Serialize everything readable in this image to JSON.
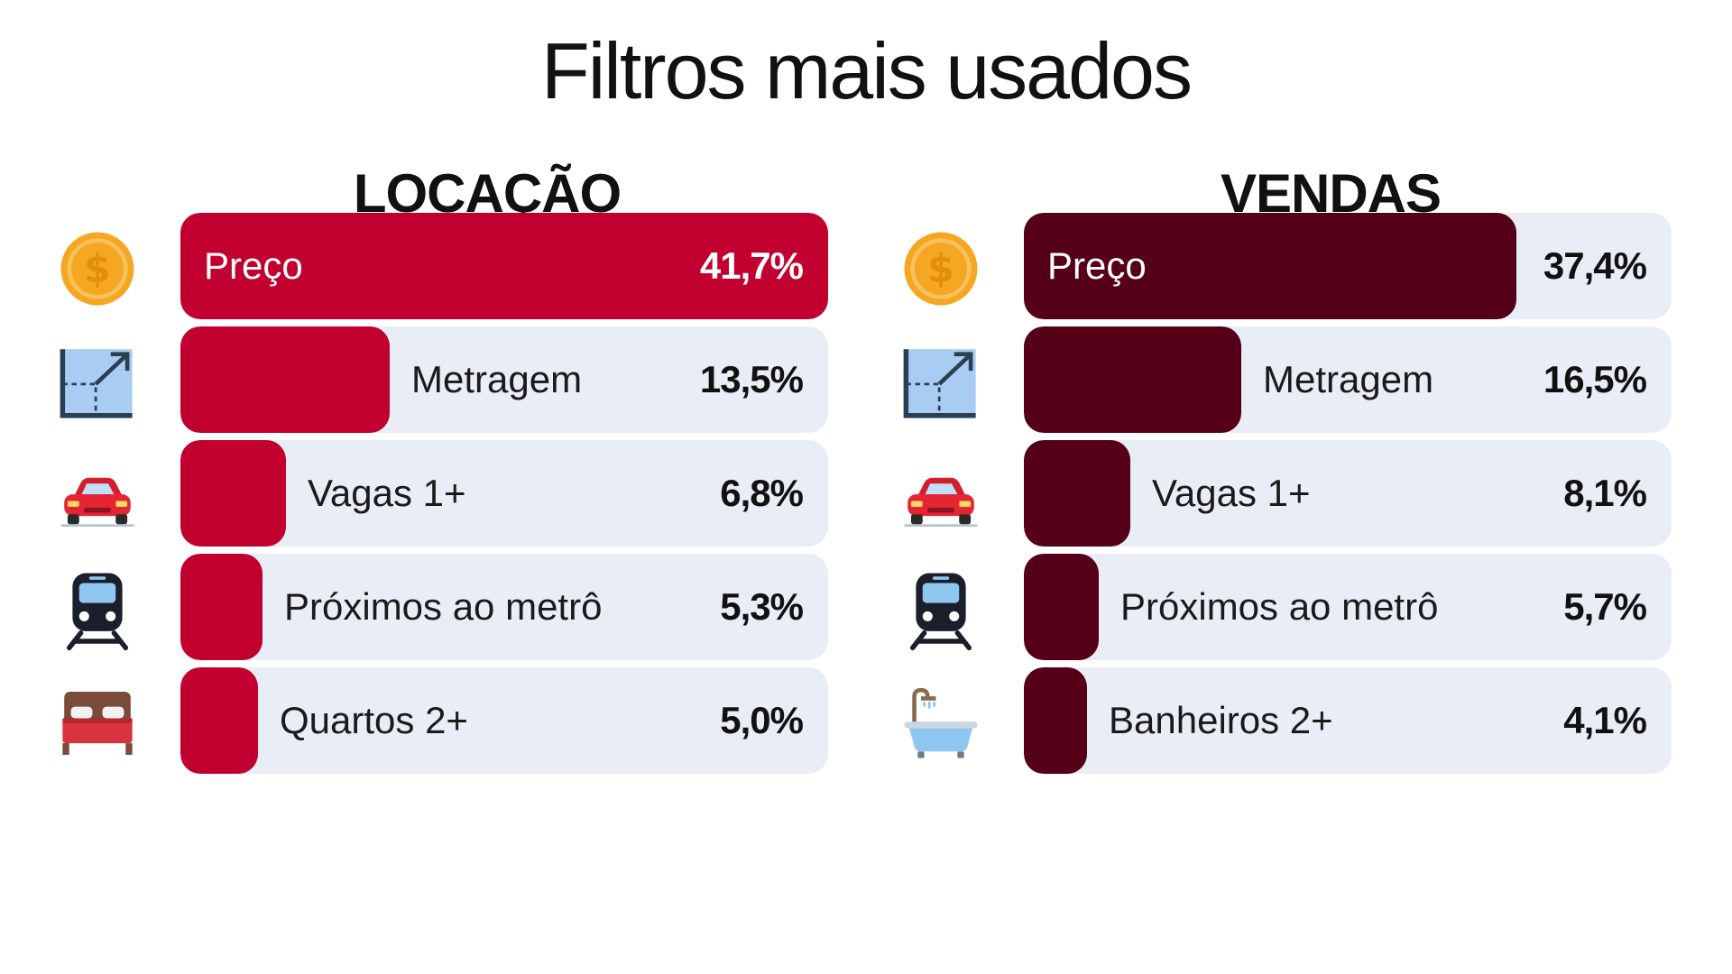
{
  "title": "Filtros mais usados",
  "chart_data": [
    {
      "type": "bar",
      "title": "LOCAÇÃO",
      "color": "#c1002f",
      "categories": [
        "Preço",
        "Metragem",
        "Vagas 1+",
        "Próximos ao metrô",
        "Quartos 2+"
      ],
      "values": [
        41.7,
        13.5,
        6.8,
        5.3,
        5.0
      ],
      "value_labels": [
        "41,7%",
        "13,5%",
        "6,8%",
        "5,3%",
        "5,0%"
      ],
      "icons": [
        "coin-icon",
        "area-icon",
        "car-icon",
        "train-icon",
        "bed-icon"
      ],
      "xlim": [
        0,
        41.7
      ]
    },
    {
      "type": "bar",
      "title": "VENDAS",
      "color": "#550018",
      "categories": [
        "Preço",
        "Metragem",
        "Vagas 1+",
        "Próximos ao metrô",
        "Banheiros 2+"
      ],
      "values": [
        37.4,
        16.5,
        8.1,
        5.7,
        4.1
      ],
      "value_labels": [
        "37,4%",
        "16,5%",
        "8,1%",
        "5,7%",
        "4,1%"
      ],
      "icons": [
        "coin-icon",
        "area-icon",
        "car-icon",
        "train-icon",
        "bathtub-icon"
      ],
      "xlim": [
        0,
        49.2
      ]
    }
  ]
}
